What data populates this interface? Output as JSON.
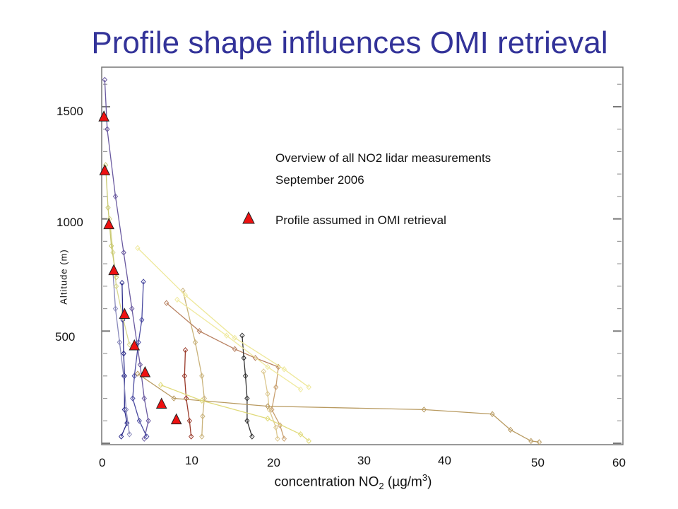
{
  "slide": {
    "title": "Profile shape influences OMI retrieval"
  },
  "chart_data": {
    "type": "line",
    "title": "Profile shape influences OMI retrieval",
    "xlabel": "concentration NO2 (µg/m3)",
    "xlabel_parts": {
      "prefix": "concentration NO",
      "sub": "2",
      "open": " (",
      "mu": "µ",
      "unit": "g/m",
      "sup": "3",
      "close": ")"
    },
    "ylabel": "Altitude (m)",
    "xlim": [
      0,
      63
    ],
    "ylim": [
      0,
      1670
    ],
    "x_ticks": [
      "0",
      "10",
      "20",
      "30",
      "40",
      "50",
      "60"
    ],
    "y_ticks": [
      "500",
      "1000",
      "1500"
    ],
    "grid": false,
    "legend": {
      "placement": "top-right",
      "entries": [
        "Profile assumed in OMI retrieval"
      ]
    },
    "annotations": [
      "Overview of all NO2 lidar measurements",
      "September 2006"
    ],
    "omi_profile": [
      {
        "x": 0.1,
        "y": 1455
      },
      {
        "x": 0.2,
        "y": 1215
      },
      {
        "x": 0.7,
        "y": 975
      },
      {
        "x": 1.3,
        "y": 770
      },
      {
        "x": 2.6,
        "y": 575
      },
      {
        "x": 3.8,
        "y": 435
      },
      {
        "x": 5.1,
        "y": 315
      },
      {
        "x": 7.1,
        "y": 175
      },
      {
        "x": 8.9,
        "y": 105
      }
    ],
    "series": [
      {
        "color": "#6a5aa0",
        "values": [
          [
            0.2,
            1620
          ],
          [
            0.5,
            1400
          ],
          [
            1.5,
            1100
          ],
          [
            2.5,
            850
          ],
          [
            3.5,
            600
          ],
          [
            4.5,
            350
          ],
          [
            5,
            200
          ],
          [
            5.5,
            100
          ],
          [
            5,
            20
          ]
        ]
      },
      {
        "color": "#2a2a8a",
        "values": [
          [
            2.3,
            715
          ],
          [
            2.4,
            550
          ],
          [
            2.5,
            400
          ],
          [
            2.6,
            300
          ],
          [
            2.6,
            150
          ],
          [
            2.9,
            90
          ],
          [
            2.2,
            30
          ]
        ]
      },
      {
        "color": "#4a4aa0",
        "values": [
          [
            4.9,
            720
          ],
          [
            4.7,
            550
          ],
          [
            4.3,
            450
          ],
          [
            3.8,
            300
          ],
          [
            3.6,
            200
          ],
          [
            4.4,
            100
          ],
          [
            5.3,
            30
          ]
        ]
      },
      {
        "color": "#8888bb",
        "values": [
          [
            1.2,
            760
          ],
          [
            1.5,
            600
          ],
          [
            2.0,
            450
          ],
          [
            2.5,
            300
          ],
          [
            2.8,
            150
          ],
          [
            3.2,
            40
          ]
        ]
      },
      {
        "color": "#c9b27a",
        "values": [
          [
            9.7,
            680
          ],
          [
            11.2,
            450
          ],
          [
            12.0,
            300
          ],
          [
            12.3,
            200
          ],
          [
            12.1,
            120
          ],
          [
            12.0,
            30
          ]
        ]
      },
      {
        "color": "#9a3a2a",
        "values": [
          [
            10.0,
            415
          ],
          [
            9.9,
            300
          ],
          [
            10.1,
            200
          ],
          [
            10.5,
            100
          ],
          [
            10.7,
            30
          ]
        ]
      },
      {
        "color": "#b88060",
        "values": [
          [
            7.7,
            625
          ],
          [
            11.7,
            500
          ],
          [
            16.0,
            420
          ],
          [
            18.5,
            380
          ],
          [
            21.3,
            340
          ]
        ]
      },
      {
        "color": "#c9a070",
        "values": [
          [
            21.3,
            340
          ],
          [
            21.0,
            250
          ],
          [
            20.5,
            150
          ],
          [
            21.5,
            80
          ],
          [
            22.0,
            20
          ]
        ]
      },
      {
        "color": "#333333",
        "values": [
          [
            16.9,
            480
          ],
          [
            17.1,
            380
          ],
          [
            17.3,
            300
          ],
          [
            17.5,
            200
          ],
          [
            17.5,
            100
          ],
          [
            18.1,
            30
          ]
        ]
      },
      {
        "color": "#dcc890",
        "values": [
          [
            19.5,
            320
          ],
          [
            20.0,
            220
          ],
          [
            20.2,
            150
          ],
          [
            21.0,
            70
          ],
          [
            21.2,
            20
          ]
        ]
      },
      {
        "color": "#b89a60",
        "values": [
          [
            4.2,
            310
          ],
          [
            8.6,
            200
          ],
          [
            20.0,
            165
          ],
          [
            39.0,
            150
          ],
          [
            47.3,
            130
          ],
          [
            49.5,
            60
          ],
          [
            52.0,
            10
          ],
          [
            53.0,
            5
          ]
        ]
      },
      {
        "color": "#e0da7a",
        "values": [
          [
            7.0,
            260
          ],
          [
            12.0,
            190
          ],
          [
            20.0,
            110
          ],
          [
            24.0,
            40
          ],
          [
            25.0,
            10
          ]
        ]
      },
      {
        "color": "#eee89a",
        "values": [
          [
            4.2,
            870
          ],
          [
            10.0,
            660
          ],
          [
            16.0,
            470
          ],
          [
            22.0,
            330
          ],
          [
            25.0,
            250
          ]
        ]
      },
      {
        "color": "#f0eaa0",
        "values": [
          [
            9.0,
            640
          ],
          [
            15.0,
            480
          ],
          [
            20.0,
            340
          ],
          [
            24.0,
            240
          ]
        ]
      },
      {
        "color": "#d8d890",
        "values": [
          [
            0.8,
            1000
          ],
          [
            1.2,
            850
          ],
          [
            1.6,
            700
          ],
          [
            2.4,
            560
          ],
          [
            3.2,
            440
          ]
        ]
      },
      {
        "color": "#c8c870",
        "values": [
          [
            0.3,
            1240
          ],
          [
            0.6,
            1050
          ],
          [
            1.0,
            880
          ],
          [
            1.6,
            740
          ]
        ]
      }
    ]
  }
}
